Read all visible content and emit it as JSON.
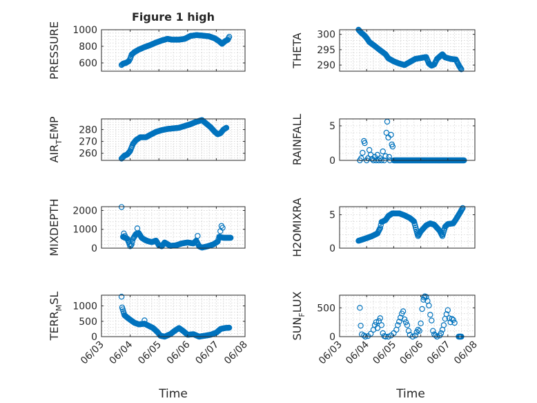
{
  "figure": {
    "title": "Figure 1 high"
  },
  "chart_data": [
    {
      "type": "scatter",
      "ylabel": "PRESSURE",
      "ylim": [
        500,
        1000
      ],
      "yticks": [
        600,
        800,
        1000
      ],
      "xlim": [
        3,
        8
      ],
      "xticks": [
        3,
        4,
        5,
        6,
        7,
        8
      ],
      "xticklabels": [
        "06/03",
        "06/04",
        "06/05",
        "06/06",
        "06/07",
        "06/08"
      ],
      "grid": true,
      "anchors": [
        [
          3.7,
          575
        ],
        [
          3.75,
          590
        ],
        [
          3.85,
          600
        ],
        [
          3.95,
          620
        ],
        [
          4.0,
          650
        ],
        [
          4.05,
          700
        ],
        [
          4.15,
          730
        ],
        [
          4.3,
          760
        ],
        [
          4.5,
          790
        ],
        [
          4.7,
          815
        ],
        [
          4.9,
          845
        ],
        [
          5.1,
          870
        ],
        [
          5.3,
          890
        ],
        [
          5.45,
          880
        ],
        [
          5.7,
          880
        ],
        [
          5.9,
          890
        ],
        [
          6.1,
          925
        ],
        [
          6.3,
          935
        ],
        [
          6.5,
          930
        ],
        [
          6.75,
          920
        ],
        [
          6.95,
          895
        ],
        [
          7.1,
          860
        ],
        [
          7.2,
          830
        ],
        [
          7.3,
          860
        ],
        [
          7.4,
          880
        ],
        [
          7.45,
          915
        ]
      ]
    },
    {
      "type": "scatter",
      "ylabel": "THETA",
      "ylim": [
        288,
        301.5
      ],
      "yticks": [
        290,
        295,
        300
      ],
      "xlim": [
        3,
        8
      ],
      "xticks": [
        3,
        4,
        5,
        6,
        7,
        8
      ],
      "xticklabels": [
        "06/03",
        "06/04",
        "06/05",
        "06/06",
        "06/07",
        "06/08"
      ],
      "grid": true,
      "anchors": [
        [
          3.7,
          301.5
        ],
        [
          3.8,
          300.5
        ],
        [
          3.9,
          299.8
        ],
        [
          4.0,
          298.8
        ],
        [
          4.1,
          297.5
        ],
        [
          4.3,
          296.2
        ],
        [
          4.5,
          294.8
        ],
        [
          4.7,
          293.5
        ],
        [
          4.8,
          292.2
        ],
        [
          5.0,
          291.2
        ],
        [
          5.2,
          290.5
        ],
        [
          5.4,
          290.0
        ],
        [
          5.6,
          291.0
        ],
        [
          5.8,
          292.0
        ],
        [
          6.0,
          292.3
        ],
        [
          6.2,
          292.6
        ],
        [
          6.3,
          290.5
        ],
        [
          6.4,
          289.8
        ],
        [
          6.5,
          290.2
        ],
        [
          6.6,
          292.0
        ],
        [
          6.8,
          293.5
        ],
        [
          6.9,
          292.5
        ],
        [
          7.1,
          292.0
        ],
        [
          7.3,
          291.8
        ],
        [
          7.4,
          290.0
        ],
        [
          7.5,
          288.6
        ]
      ]
    },
    {
      "type": "scatter",
      "ylabel": "AIR_TEMP",
      "ylim": [
        254,
        289
      ],
      "yticks": [
        260,
        270,
        280
      ],
      "xlim": [
        3,
        8
      ],
      "xticks": [
        3,
        4,
        5,
        6,
        7,
        8
      ],
      "xticklabels": [
        "06/03",
        "06/04",
        "06/05",
        "06/06",
        "06/07",
        "06/08"
      ],
      "grid": true,
      "anchors": [
        [
          3.7,
          255.5
        ],
        [
          3.8,
          258
        ],
        [
          3.9,
          259
        ],
        [
          4.0,
          262
        ],
        [
          4.1,
          268
        ],
        [
          4.2,
          271
        ],
        [
          4.35,
          273.5
        ],
        [
          4.55,
          273.5
        ],
        [
          4.7,
          275.5
        ],
        [
          4.9,
          278
        ],
        [
          5.1,
          279.5
        ],
        [
          5.3,
          280.5
        ],
        [
          5.5,
          281
        ],
        [
          5.7,
          281.5
        ],
        [
          5.9,
          283
        ],
        [
          6.1,
          284.5
        ],
        [
          6.3,
          286.5
        ],
        [
          6.5,
          288
        ],
        [
          6.65,
          285
        ],
        [
          6.8,
          282
        ],
        [
          6.95,
          278
        ],
        [
          7.05,
          276
        ],
        [
          7.15,
          277
        ],
        [
          7.25,
          280
        ],
        [
          7.35,
          281.5
        ]
      ]
    },
    {
      "type": "scatter",
      "ylabel": "RAINFALL",
      "ylim": [
        0,
        6
      ],
      "yticks": [
        0,
        5
      ],
      "xlim": [
        3,
        8
      ],
      "xticks": [
        3,
        4,
        5,
        6,
        7,
        8
      ],
      "xticklabels": [
        "06/03",
        "06/04",
        "06/05",
        "06/06",
        "06/07",
        "06/08"
      ],
      "grid": true,
      "points": [
        [
          3.75,
          0
        ],
        [
          3.8,
          0.3
        ],
        [
          3.85,
          1.1
        ],
        [
          3.9,
          2.8
        ],
        [
          3.93,
          2.5
        ],
        [
          4.0,
          0
        ],
        [
          4.05,
          0.3
        ],
        [
          4.1,
          1.5
        ],
        [
          4.15,
          0.8
        ],
        [
          4.2,
          0.2
        ],
        [
          4.25,
          0
        ],
        [
          4.3,
          0.5
        ],
        [
          4.35,
          0
        ],
        [
          4.4,
          0.8
        ],
        [
          4.45,
          0
        ],
        [
          4.5,
          0.3
        ],
        [
          4.55,
          0
        ],
        [
          4.6,
          1.3
        ],
        [
          4.65,
          0
        ],
        [
          4.7,
          0.6
        ],
        [
          4.73,
          4.0
        ],
        [
          4.76,
          5.6
        ],
        [
          4.8,
          3.3
        ],
        [
          4.83,
          0.5
        ],
        [
          4.86,
          0
        ],
        [
          4.9,
          3.7
        ],
        [
          4.93,
          2.3
        ],
        [
          4.96,
          2.0
        ]
      ],
      "anchors": [
        [
          5.0,
          0
        ],
        [
          7.6,
          0
        ]
      ]
    },
    {
      "type": "scatter",
      "ylabel": "MIXDEPTH",
      "ylim": [
        0,
        2200
      ],
      "yticks": [
        0,
        1000,
        2000
      ],
      "xlim": [
        3,
        8
      ],
      "xticks": [
        3,
        4,
        5,
        6,
        7,
        8
      ],
      "xticklabels": [
        "06/03",
        "06/04",
        "06/05",
        "06/06",
        "06/07",
        "06/08"
      ],
      "grid": true,
      "points": [
        [
          3.7,
          2180
        ],
        [
          3.78,
          780
        ],
        [
          3.82,
          650
        ],
        [
          4.25,
          1050
        ],
        [
          6.35,
          650
        ],
        [
          7.18,
          1180
        ],
        [
          7.22,
          1080
        ],
        [
          7.14,
          900
        ]
      ],
      "anchors": [
        [
          3.75,
          600
        ],
        [
          3.9,
          500
        ],
        [
          3.95,
          320
        ],
        [
          4.0,
          100
        ],
        [
          4.05,
          200
        ],
        [
          4.1,
          500
        ],
        [
          4.2,
          750
        ],
        [
          4.3,
          800
        ],
        [
          4.4,
          550
        ],
        [
          4.5,
          450
        ],
        [
          4.6,
          380
        ],
        [
          4.75,
          320
        ],
        [
          4.9,
          400
        ],
        [
          5.0,
          150
        ],
        [
          5.1,
          100
        ],
        [
          5.2,
          300
        ],
        [
          5.4,
          120
        ],
        [
          5.6,
          150
        ],
        [
          5.8,
          250
        ],
        [
          6.0,
          300
        ],
        [
          6.2,
          250
        ],
        [
          6.3,
          400
        ],
        [
          6.4,
          100
        ],
        [
          6.5,
          30
        ],
        [
          6.7,
          100
        ],
        [
          6.9,
          200
        ],
        [
          7.05,
          350
        ],
        [
          7.1,
          600
        ],
        [
          7.25,
          550
        ],
        [
          7.4,
          550
        ],
        [
          7.5,
          550
        ]
      ]
    },
    {
      "type": "scatter",
      "ylabel": "H2OMIXRA",
      "ylim": [
        0,
        6.2
      ],
      "yticks": [
        0,
        5
      ],
      "xlim": [
        3,
        8
      ],
      "xticks": [
        3,
        4,
        5,
        6,
        7,
        8
      ],
      "xticklabels": [
        "06/03",
        "06/04",
        "06/05",
        "06/06",
        "06/07",
        "06/08"
      ],
      "grid": true,
      "anchors": [
        [
          3.7,
          1.1
        ],
        [
          3.85,
          1.3
        ],
        [
          4.0,
          1.5
        ],
        [
          4.2,
          1.8
        ],
        [
          4.4,
          2.2
        ],
        [
          4.5,
          3.0
        ],
        [
          4.55,
          3.9
        ],
        [
          4.7,
          4.2
        ],
        [
          4.8,
          4.8
        ],
        [
          4.95,
          5.2
        ],
        [
          5.2,
          5.2
        ],
        [
          5.4,
          4.9
        ],
        [
          5.6,
          4.5
        ],
        [
          5.75,
          4.0
        ],
        [
          5.85,
          2.5
        ],
        [
          5.9,
          1.8
        ],
        [
          6.0,
          2.5
        ],
        [
          6.2,
          3.4
        ],
        [
          6.35,
          3.7
        ],
        [
          6.5,
          3.5
        ],
        [
          6.7,
          2.6
        ],
        [
          6.8,
          1.8
        ],
        [
          6.9,
          3.2
        ],
        [
          7.0,
          3.6
        ],
        [
          7.2,
          3.7
        ],
        [
          7.3,
          4.3
        ],
        [
          7.45,
          5.3
        ],
        [
          7.55,
          6.0
        ]
      ]
    },
    {
      "type": "scatter",
      "ylabel": "TERR_MSL",
      "ylim": [
        0,
        1350
      ],
      "yticks": [
        0,
        500,
        1000
      ],
      "xlim": [
        3,
        8
      ],
      "xticks": [
        3,
        4,
        5,
        6,
        7,
        8
      ],
      "xticklabels": [
        "06/03",
        "06/04",
        "06/05",
        "06/06",
        "06/07",
        "06/08"
      ],
      "grid": true,
      "points": [
        [
          3.7,
          1300
        ],
        [
          4.5,
          530
        ]
      ],
      "anchors": [
        [
          3.72,
          950
        ],
        [
          3.8,
          700
        ],
        [
          3.9,
          620
        ],
        [
          4.0,
          550
        ],
        [
          4.15,
          450
        ],
        [
          4.3,
          400
        ],
        [
          4.5,
          420
        ],
        [
          4.65,
          350
        ],
        [
          4.8,
          280
        ],
        [
          4.95,
          150
        ],
        [
          5.05,
          30
        ],
        [
          5.2,
          0
        ],
        [
          5.4,
          80
        ],
        [
          5.55,
          190
        ],
        [
          5.7,
          280
        ],
        [
          5.85,
          180
        ],
        [
          6.0,
          60
        ],
        [
          6.2,
          80
        ],
        [
          6.4,
          0
        ],
        [
          6.6,
          30
        ],
        [
          6.8,
          60
        ],
        [
          7.0,
          130
        ],
        [
          7.15,
          250
        ],
        [
          7.3,
          280
        ],
        [
          7.45,
          290
        ]
      ]
    },
    {
      "type": "scatter",
      "ylabel": "SUN_FLUX",
      "ylim": [
        0,
        720
      ],
      "yticks": [
        0,
        500
      ],
      "xlim": [
        3,
        8
      ],
      "xticks": [
        3,
        4,
        5,
        6,
        7,
        8
      ],
      "xticklabels": [
        "06/03",
        "06/04",
        "06/05",
        "06/06",
        "06/07",
        "06/08"
      ],
      "grid": true,
      "points": [
        [
          3.75,
          500
        ],
        [
          3.78,
          190
        ],
        [
          3.82,
          40
        ],
        [
          3.9,
          20
        ],
        [
          3.95,
          0
        ],
        [
          4.05,
          10
        ],
        [
          4.15,
          50
        ],
        [
          4.25,
          120
        ],
        [
          4.3,
          200
        ],
        [
          4.35,
          250
        ],
        [
          4.4,
          150
        ],
        [
          4.45,
          270
        ],
        [
          4.5,
          320
        ],
        [
          4.55,
          200
        ],
        [
          4.6,
          60
        ],
        [
          4.65,
          10
        ],
        [
          4.7,
          0
        ],
        [
          4.8,
          0
        ],
        [
          4.9,
          20
        ],
        [
          5.0,
          60
        ],
        [
          5.1,
          120
        ],
        [
          5.15,
          200
        ],
        [
          5.2,
          260
        ],
        [
          5.25,
          330
        ],
        [
          5.3,
          400
        ],
        [
          5.35,
          440
        ],
        [
          5.4,
          300
        ],
        [
          5.45,
          250
        ],
        [
          5.5,
          200
        ],
        [
          5.55,
          100
        ],
        [
          5.6,
          30
        ],
        [
          5.7,
          0
        ],
        [
          5.8,
          20
        ],
        [
          5.85,
          80
        ],
        [
          5.9,
          120
        ],
        [
          5.95,
          100
        ],
        [
          6.0,
          230
        ],
        [
          6.05,
          480
        ],
        [
          6.1,
          640
        ],
        [
          6.12,
          680
        ],
        [
          6.15,
          700
        ],
        [
          6.2,
          690
        ],
        [
          6.25,
          620
        ],
        [
          6.3,
          540
        ],
        [
          6.35,
          380
        ],
        [
          6.4,
          280
        ],
        [
          6.45,
          100
        ],
        [
          6.5,
          40
        ],
        [
          6.55,
          20
        ],
        [
          6.6,
          0
        ],
        [
          6.7,
          20
        ],
        [
          6.75,
          60
        ],
        [
          6.8,
          120
        ],
        [
          6.85,
          200
        ],
        [
          6.9,
          310
        ],
        [
          6.95,
          390
        ],
        [
          7.0,
          460
        ],
        [
          7.05,
          320
        ],
        [
          7.1,
          250
        ],
        [
          7.15,
          310
        ],
        [
          7.2,
          290
        ],
        [
          7.25,
          240
        ]
      ],
      "anchors": [
        [
          7.4,
          0
        ],
        [
          7.5,
          0
        ]
      ]
    }
  ],
  "xlabel": "Time"
}
